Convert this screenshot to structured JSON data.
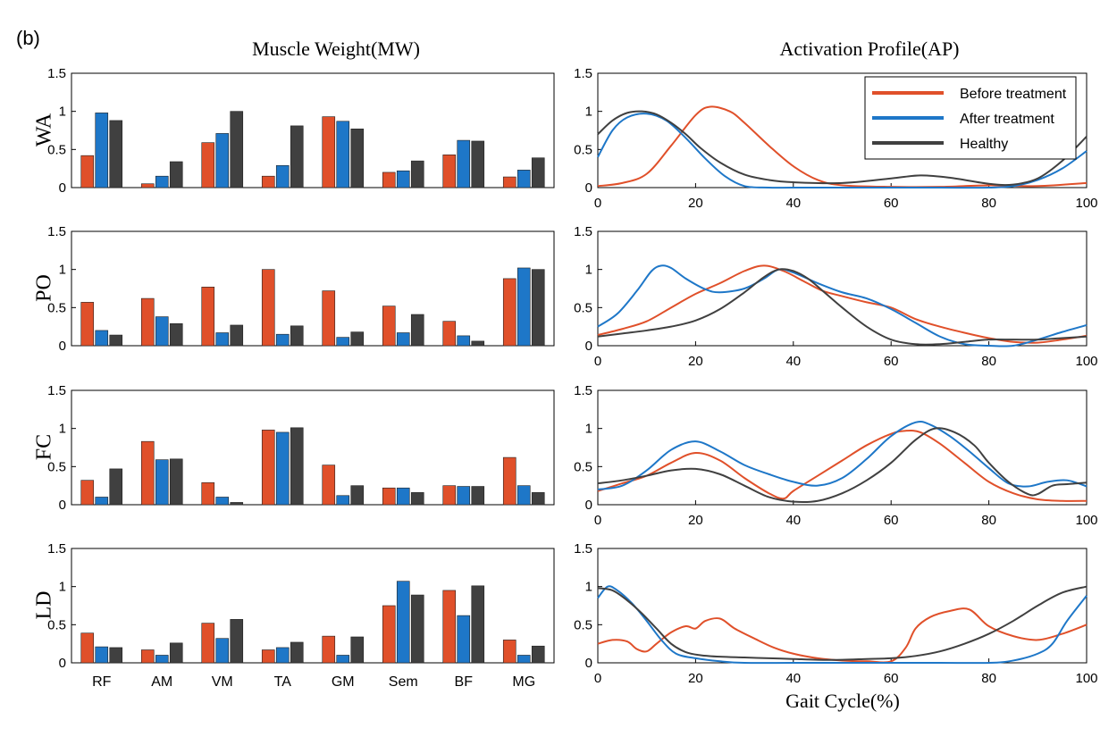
{
  "panel_label": "(b)",
  "left_title": "Muscle Weight(MW)",
  "right_title": "Activation Profile(AP)",
  "rows": [
    "WA",
    "PO",
    "FC",
    "LD"
  ],
  "x_axis_title": "Gait Cycle(%)",
  "colors": {
    "before": "#e0502a",
    "after": "#1e77c8",
    "healthy": "#404040"
  },
  "chart_data": [
    {
      "type": "bar",
      "group": "Muscle Weight(MW)",
      "categories": [
        "RF",
        "AM",
        "VM",
        "TA",
        "GM",
        "Sem",
        "BF",
        "MG"
      ],
      "ylim": [
        0,
        1.5
      ],
      "yticks": [
        0,
        0.5,
        1,
        1.5
      ],
      "rows": [
        {
          "row": "WA",
          "series": [
            {
              "name": "Before treatment",
              "values": [
                0.42,
                0.05,
                0.59,
                0.15,
                0.93,
                0.2,
                0.43,
                0.14
              ]
            },
            {
              "name": "After treatment",
              "values": [
                0.98,
                0.15,
                0.71,
                0.29,
                0.87,
                0.22,
                0.62,
                0.23
              ]
            },
            {
              "name": "Healthy",
              "values": [
                0.88,
                0.34,
                1.0,
                0.81,
                0.77,
                0.35,
                0.61,
                0.39
              ]
            }
          ]
        },
        {
          "row": "PO",
          "series": [
            {
              "name": "Before treatment",
              "values": [
                0.57,
                0.62,
                0.77,
                1.0,
                0.72,
                0.52,
                0.32,
                0.88
              ]
            },
            {
              "name": "After treatment",
              "values": [
                0.2,
                0.38,
                0.17,
                0.15,
                0.11,
                0.17,
                0.13,
                1.02
              ]
            },
            {
              "name": "Healthy",
              "values": [
                0.14,
                0.29,
                0.27,
                0.26,
                0.18,
                0.41,
                0.06,
                1.0
              ]
            }
          ]
        },
        {
          "row": "FC",
          "series": [
            {
              "name": "Before treatment",
              "values": [
                0.32,
                0.83,
                0.29,
                0.98,
                0.52,
                0.22,
                0.25,
                0.62
              ]
            },
            {
              "name": "After treatment",
              "values": [
                0.1,
                0.59,
                0.1,
                0.95,
                0.12,
                0.22,
                0.24,
                0.25
              ]
            },
            {
              "name": "Healthy",
              "values": [
                0.47,
                0.6,
                0.03,
                1.01,
                0.25,
                0.16,
                0.24,
                0.16
              ]
            }
          ]
        },
        {
          "row": "LD",
          "series": [
            {
              "name": "Before treatment",
              "values": [
                0.39,
                0.17,
                0.52,
                0.17,
                0.35,
                0.75,
                0.95,
                0.3
              ]
            },
            {
              "name": "After treatment",
              "values": [
                0.21,
                0.1,
                0.32,
                0.2,
                0.1,
                1.07,
                0.62,
                0.1
              ]
            },
            {
              "name": "Healthy",
              "values": [
                0.2,
                0.26,
                0.57,
                0.27,
                0.34,
                0.89,
                1.01,
                0.22
              ]
            }
          ]
        }
      ]
    },
    {
      "type": "line",
      "group": "Activation Profile(AP)",
      "xlabel": "Gait Cycle(%)",
      "xlim": [
        0,
        100
      ],
      "xticks": [
        0,
        20,
        40,
        60,
        80,
        100
      ],
      "ylim": [
        0,
        1.5
      ],
      "yticks": [
        0,
        0.5,
        1,
        1.5
      ],
      "legend": {
        "placement": "top-right",
        "entries": [
          "Before treatment",
          "After treatment",
          "Healthy"
        ]
      },
      "rows": [
        {
          "row": "WA",
          "series": [
            {
              "name": "Before treatment",
              "x": [
                0,
                5,
                10,
                15,
                20,
                23,
                27,
                30,
                35,
                40,
                45,
                50,
                60,
                70,
                80,
                90,
                100
              ],
              "y": [
                0.02,
                0.06,
                0.18,
                0.55,
                0.95,
                1.06,
                1.0,
                0.85,
                0.55,
                0.28,
                0.1,
                0.03,
                0.01,
                0.01,
                0.03,
                0.02,
                0.06
              ]
            },
            {
              "name": "After treatment",
              "x": [
                0,
                3,
                6,
                10,
                14,
                18,
                22,
                26,
                30,
                35,
                40,
                50,
                60,
                70,
                80,
                85,
                90,
                95,
                100
              ],
              "y": [
                0.4,
                0.75,
                0.92,
                0.97,
                0.88,
                0.65,
                0.38,
                0.15,
                0.02,
                0.0,
                0.0,
                0.0,
                0.0,
                0.0,
                0.0,
                0.02,
                0.1,
                0.25,
                0.48
              ]
            },
            {
              "name": "Healthy",
              "x": [
                0,
                3,
                6,
                9,
                12,
                15,
                18,
                21,
                25,
                30,
                35,
                40,
                50,
                60,
                66,
                72,
                80,
                85,
                90,
                95,
                100
              ],
              "y": [
                0.7,
                0.88,
                0.98,
                1.0,
                0.96,
                0.85,
                0.7,
                0.52,
                0.33,
                0.17,
                0.1,
                0.07,
                0.06,
                0.12,
                0.16,
                0.13,
                0.05,
                0.04,
                0.12,
                0.35,
                0.67
              ]
            }
          ]
        },
        {
          "row": "PO",
          "series": [
            {
              "name": "Before treatment",
              "x": [
                0,
                5,
                10,
                15,
                20,
                25,
                30,
                34,
                38,
                42,
                46,
                50,
                55,
                60,
                65,
                70,
                75,
                80,
                85,
                90,
                95,
                100
              ],
              "y": [
                0.14,
                0.22,
                0.32,
                0.5,
                0.68,
                0.82,
                0.98,
                1.05,
                0.98,
                0.85,
                0.72,
                0.65,
                0.57,
                0.5,
                0.35,
                0.25,
                0.17,
                0.1,
                0.05,
                0.04,
                0.08,
                0.13
              ]
            },
            {
              "name": "After treatment",
              "x": [
                0,
                4,
                8,
                11,
                13,
                15,
                18,
                22,
                25,
                30,
                34,
                37,
                40,
                45,
                50,
                55,
                60,
                65,
                70,
                75,
                80,
                85,
                90,
                95,
                100
              ],
              "y": [
                0.25,
                0.42,
                0.72,
                0.98,
                1.05,
                1.02,
                0.88,
                0.74,
                0.7,
                0.75,
                0.88,
                1.0,
                0.96,
                0.82,
                0.7,
                0.62,
                0.48,
                0.3,
                0.12,
                0.02,
                0.0,
                0.0,
                0.08,
                0.18,
                0.27
              ]
            },
            {
              "name": "Healthy",
              "x": [
                0,
                5,
                10,
                15,
                20,
                25,
                30,
                34,
                37,
                40,
                43,
                46,
                50,
                55,
                60,
                65,
                70,
                75,
                80,
                85,
                90,
                95,
                100
              ],
              "y": [
                0.12,
                0.16,
                0.2,
                0.25,
                0.33,
                0.48,
                0.7,
                0.9,
                1.0,
                0.98,
                0.88,
                0.72,
                0.5,
                0.25,
                0.08,
                0.02,
                0.02,
                0.05,
                0.08,
                0.08,
                0.08,
                0.1,
                0.12
              ]
            }
          ]
        },
        {
          "row": "FC",
          "series": [
            {
              "name": "Before treatment",
              "x": [
                0,
                5,
                10,
                15,
                20,
                25,
                30,
                35,
                38,
                40,
                45,
                50,
                55,
                60,
                63,
                66,
                70,
                75,
                80,
                85,
                90,
                95,
                100
              ],
              "y": [
                0.18,
                0.28,
                0.38,
                0.55,
                0.68,
                0.58,
                0.35,
                0.15,
                0.08,
                0.18,
                0.38,
                0.58,
                0.78,
                0.93,
                0.97,
                0.95,
                0.8,
                0.55,
                0.3,
                0.15,
                0.07,
                0.05,
                0.05
              ]
            },
            {
              "name": "After treatment",
              "x": [
                0,
                5,
                10,
                15,
                20,
                25,
                30,
                35,
                40,
                45,
                50,
                55,
                60,
                65,
                68,
                72,
                76,
                80,
                84,
                88,
                92,
                96,
                100
              ],
              "y": [
                0.2,
                0.25,
                0.45,
                0.72,
                0.83,
                0.7,
                0.52,
                0.4,
                0.3,
                0.25,
                0.35,
                0.6,
                0.9,
                1.08,
                1.05,
                0.9,
                0.7,
                0.48,
                0.28,
                0.24,
                0.3,
                0.32,
                0.24
              ]
            },
            {
              "name": "Healthy",
              "x": [
                0,
                5,
                10,
                15,
                20,
                25,
                30,
                35,
                40,
                45,
                50,
                55,
                60,
                65,
                69,
                73,
                77,
                80,
                84,
                88,
                90,
                93,
                96,
                100
              ],
              "y": [
                0.28,
                0.32,
                0.38,
                0.45,
                0.47,
                0.4,
                0.25,
                0.1,
                0.04,
                0.05,
                0.15,
                0.32,
                0.55,
                0.85,
                1.0,
                0.95,
                0.78,
                0.55,
                0.3,
                0.14,
                0.14,
                0.25,
                0.27,
                0.29
              ]
            }
          ]
        },
        {
          "row": "LD",
          "series": [
            {
              "name": "Before treatment",
              "x": [
                0,
                3,
                6,
                8,
                10,
                12,
                15,
                18,
                20,
                22,
                25,
                28,
                32,
                36,
                40,
                45,
                50,
                55,
                60,
                63,
                65,
                68,
                72,
                76,
                80,
                85,
                90,
                95,
                100
              ],
              "y": [
                0.25,
                0.3,
                0.28,
                0.18,
                0.15,
                0.25,
                0.4,
                0.48,
                0.45,
                0.55,
                0.58,
                0.45,
                0.32,
                0.2,
                0.12,
                0.06,
                0.03,
                0.02,
                0.02,
                0.2,
                0.45,
                0.6,
                0.68,
                0.7,
                0.48,
                0.35,
                0.3,
                0.38,
                0.5
              ]
            },
            {
              "name": "After treatment",
              "x": [
                0,
                2,
                4,
                7,
                10,
                13,
                16,
                20,
                25,
                30,
                40,
                50,
                60,
                70,
                80,
                85,
                90,
                93,
                96,
                100
              ],
              "y": [
                0.85,
                1.0,
                0.95,
                0.78,
                0.55,
                0.3,
                0.12,
                0.06,
                0.02,
                0.0,
                0.0,
                0.0,
                0.0,
                0.0,
                0.0,
                0.03,
                0.12,
                0.25,
                0.55,
                0.88
              ]
            },
            {
              "name": "Healthy",
              "x": [
                0,
                3,
                6,
                9,
                12,
                15,
                18,
                21,
                25,
                30,
                35,
                40,
                45,
                50,
                55,
                60,
                65,
                70,
                75,
                80,
                85,
                90,
                95,
                100
              ],
              "y": [
                0.98,
                0.95,
                0.82,
                0.65,
                0.45,
                0.25,
                0.14,
                0.1,
                0.08,
                0.07,
                0.06,
                0.05,
                0.04,
                0.04,
                0.05,
                0.06,
                0.09,
                0.15,
                0.25,
                0.38,
                0.55,
                0.75,
                0.92,
                1.0
              ]
            }
          ]
        }
      ]
    }
  ]
}
